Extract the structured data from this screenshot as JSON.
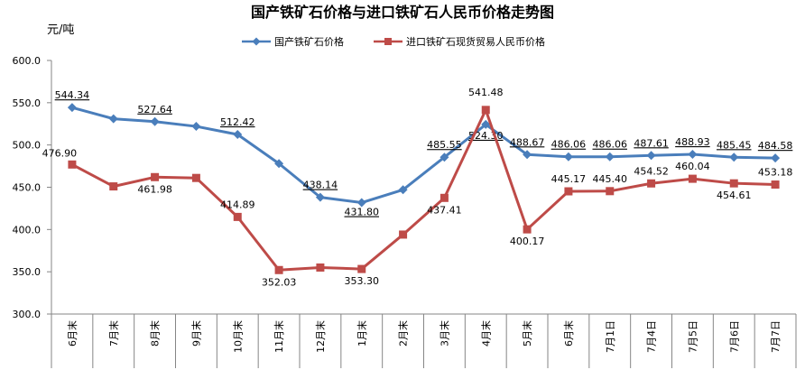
{
  "chart_data": {
    "type": "line",
    "title": "国产铁矿石价格与进口铁矿石人民币价格走势图",
    "ylabel": "元/吨",
    "xlabel": "",
    "ylim": [
      300,
      600
    ],
    "yticks": [
      "300.0",
      "350.0",
      "400.0",
      "450.0",
      "500.0",
      "550.0",
      "600.0"
    ],
    "grid": false,
    "legend_position": "top",
    "categories": [
      "6月末",
      "7月末",
      "8月末",
      "9月末",
      "10月末",
      "11月末",
      "12月末",
      "1月末",
      "2月末",
      "3月末",
      "4月末",
      "5月末",
      "6月末",
      "7月1日",
      "7月4日",
      "7月5日",
      "7月6日",
      "7月7日"
    ],
    "series": [
      {
        "name": "国产铁矿石价格",
        "color": "#4a7ebb",
        "marker": "diamond",
        "values": [
          544.34,
          531,
          527.64,
          522,
          512.42,
          478,
          438.14,
          431.8,
          447,
          485.55,
          524.3,
          488.67,
          486.06,
          486.06,
          487.61,
          488.93,
          485.45,
          484.58
        ],
        "labels": [
          "544.34",
          "",
          "527.64",
          "",
          "512.42",
          "",
          "438.14",
          "431.80",
          "",
          "485.55",
          "524.30",
          "488.67",
          "486.06",
          "486.06",
          "487.61",
          "488.93",
          "485.45",
          "484.58"
        ]
      },
      {
        "name": "进口铁矿石现货贸易人民币价格",
        "color": "#be4b48",
        "marker": "square",
        "values": [
          476.9,
          451,
          461.98,
          461,
          414.89,
          352.03,
          355,
          353.3,
          394,
          437.41,
          541.48,
          400.17,
          445.17,
          445.4,
          454.52,
          460.04,
          454.61,
          453.18
        ],
        "labels": [
          "476.90",
          "",
          "461.98",
          "",
          "414.89",
          "352.03",
          "",
          "353.30",
          "",
          "437.41",
          "541.48",
          "400.17",
          "445.17",
          "445.40",
          "454.52",
          "460.04",
          "454.61",
          "453.18"
        ]
      }
    ]
  }
}
